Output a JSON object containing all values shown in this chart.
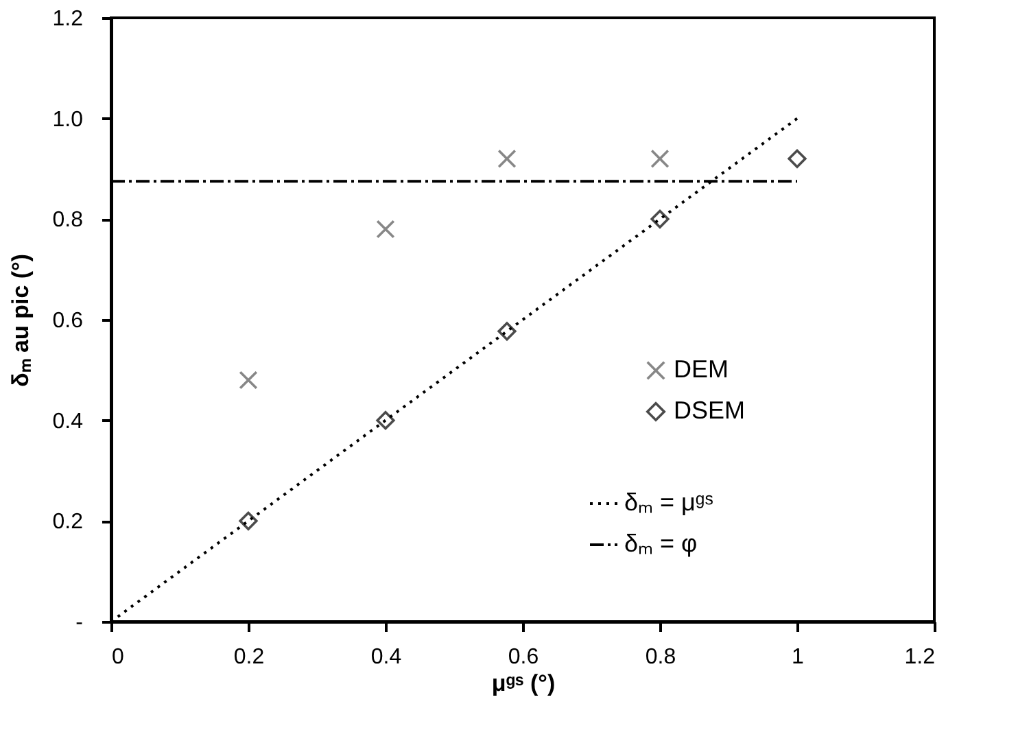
{
  "chart_data": {
    "type": "scatter",
    "xlabel": "μᵍˢ (°)",
    "ylabel": "δₘ au pic (°)",
    "xlim": [
      0,
      1.2
    ],
    "ylim": [
      0,
      1.2
    ],
    "xticks": [
      0,
      0.2,
      0.4,
      0.6,
      0.8,
      1,
      1.2
    ],
    "yticks": [
      {
        "value": 0,
        "label": "-"
      },
      0.2,
      0.4,
      0.6,
      0.8,
      {
        "value": 1,
        "label": "1.0"
      },
      1.2
    ],
    "grid": false,
    "legend": "bottom right",
    "series": [
      {
        "name": "DEM",
        "marker": "cross",
        "color": "#555555",
        "x": [
          0.2,
          0.4,
          0.577,
          0.8
        ],
        "values": [
          0.48,
          0.78,
          0.92,
          0.92
        ]
      },
      {
        "name": "DSEM",
        "marker": "diamond",
        "color": "#000000",
        "x": [
          0.2,
          0.4,
          0.577,
          0.8,
          1
        ],
        "values": [
          0.2,
          0.4,
          0.577,
          0.8,
          0.92
        ]
      },
      {
        "name": "δₘ = μᵍˢ",
        "type": "line",
        "line_style": "dotted",
        "color": "#000000",
        "x": [
          0,
          1
        ],
        "values": [
          0,
          1
        ]
      },
      {
        "name": "δₘ = φ",
        "type": "line",
        "line_style": "dashdot",
        "color": "#000000",
        "x": [
          0,
          1
        ],
        "values": [
          0.875,
          0.875
        ]
      }
    ]
  }
}
